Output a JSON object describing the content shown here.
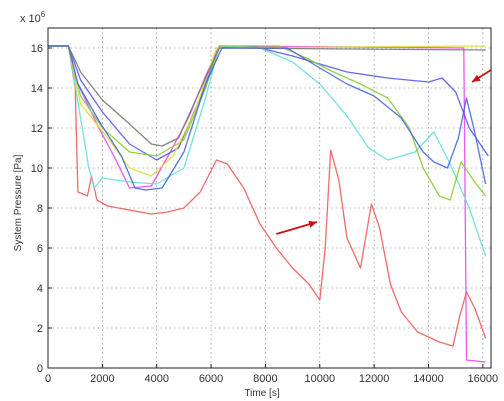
{
  "chart_data": {
    "type": "line",
    "xlabel": "Time [s]",
    "ylabel": "System Pressure [Pa]",
    "y_exponent_label": "x 10",
    "y_exponent_power": "6",
    "xlim": [
      0,
      16300
    ],
    "ylim": [
      0,
      17
    ],
    "grid": true,
    "xticks": [
      0,
      2000,
      4000,
      6000,
      8000,
      10000,
      12000,
      14000,
      16000
    ],
    "yticks": [
      0,
      2,
      4,
      6,
      8,
      10,
      12,
      14,
      16
    ],
    "series": [
      {
        "color": "#f25a5a",
        "points": [
          [
            0,
            16.1
          ],
          [
            750,
            16.1
          ],
          [
            1000,
            14
          ],
          [
            1100,
            8.8
          ],
          [
            1300,
            8.7
          ],
          [
            1450,
            8.6
          ],
          [
            1600,
            9.6
          ],
          [
            1800,
            8.4
          ],
          [
            2200,
            8.1
          ],
          [
            3000,
            7.9
          ],
          [
            3800,
            7.7
          ],
          [
            4400,
            7.8
          ],
          [
            5000,
            8.0
          ],
          [
            5600,
            8.8
          ],
          [
            6200,
            10.4
          ],
          [
            6600,
            10.2
          ],
          [
            7200,
            9.0
          ],
          [
            7800,
            7.2
          ],
          [
            8400,
            6.0
          ],
          [
            9000,
            5.0
          ],
          [
            9600,
            4.2
          ],
          [
            10000,
            3.4
          ],
          [
            10200,
            6.0
          ],
          [
            10400,
            10.9
          ],
          [
            10700,
            9.4
          ],
          [
            11000,
            6.5
          ],
          [
            11500,
            5.0
          ],
          [
            11900,
            8.2
          ],
          [
            12200,
            7.0
          ],
          [
            12600,
            4.2
          ],
          [
            13000,
            2.8
          ],
          [
            13600,
            1.8
          ],
          [
            14400,
            1.3
          ],
          [
            14900,
            1.1
          ],
          [
            15150,
            2.6
          ],
          [
            15400,
            3.8
          ],
          [
            15700,
            3.0
          ],
          [
            16100,
            1.5
          ]
        ]
      },
      {
        "color": "#ee44ee",
        "points": [
          [
            0,
            16.1
          ],
          [
            750,
            16.1
          ],
          [
            1000,
            14.5
          ],
          [
            1800,
            12.2
          ],
          [
            2500,
            10.4
          ],
          [
            3000,
            9.0
          ],
          [
            3800,
            9.1
          ],
          [
            4500,
            10.8
          ],
          [
            5200,
            12.6
          ],
          [
            5800,
            14.6
          ],
          [
            6300,
            16.1
          ],
          [
            15300,
            16.0
          ],
          [
            15400,
            0.4
          ],
          [
            16100,
            0.3
          ]
        ]
      },
      {
        "color": "#5858ee",
        "points": [
          [
            0,
            16.1
          ],
          [
            750,
            16.1
          ],
          [
            1200,
            14.4
          ],
          [
            2000,
            12.8
          ],
          [
            3000,
            11.2
          ],
          [
            4000,
            10.4
          ],
          [
            4800,
            11.0
          ],
          [
            5600,
            13.5
          ],
          [
            6300,
            16.0
          ],
          [
            7500,
            16.1
          ],
          [
            9000,
            15.6
          ],
          [
            11000,
            14.8
          ],
          [
            12500,
            14.5
          ],
          [
            14000,
            14.3
          ],
          [
            14500,
            14.5
          ],
          [
            15000,
            13.8
          ],
          [
            15500,
            12.0
          ],
          [
            16000,
            11.0
          ],
          [
            16200,
            10.6
          ]
        ]
      },
      {
        "color": "#66dddd",
        "points": [
          [
            0,
            16.1
          ],
          [
            750,
            16.1
          ],
          [
            1200,
            12.5
          ],
          [
            1500,
            10.0
          ],
          [
            1700,
            9.0
          ],
          [
            2000,
            9.5
          ],
          [
            3000,
            9.3
          ],
          [
            4000,
            9.2
          ],
          [
            5000,
            10.0
          ],
          [
            5800,
            13.5
          ],
          [
            6300,
            16.1
          ],
          [
            7800,
            16.0
          ],
          [
            9000,
            15.3
          ],
          [
            10000,
            14.2
          ],
          [
            11000,
            12.6
          ],
          [
            11800,
            11.0
          ],
          [
            12500,
            10.4
          ],
          [
            13500,
            10.8
          ],
          [
            14200,
            11.8
          ],
          [
            14800,
            10.2
          ],
          [
            15500,
            8.0
          ],
          [
            16100,
            5.6
          ]
        ]
      },
      {
        "color": "#88cc33",
        "points": [
          [
            0,
            16.1
          ],
          [
            750,
            16.1
          ],
          [
            1200,
            13.6
          ],
          [
            2000,
            12.0
          ],
          [
            3000,
            10.8
          ],
          [
            4000,
            10.6
          ],
          [
            5000,
            11.4
          ],
          [
            5800,
            14.0
          ],
          [
            6300,
            16.1
          ],
          [
            8500,
            16.1
          ],
          [
            9500,
            15.5
          ],
          [
            10500,
            14.8
          ],
          [
            11500,
            14.2
          ],
          [
            12500,
            13.5
          ],
          [
            13300,
            12.0
          ],
          [
            13800,
            10.0
          ],
          [
            14400,
            8.6
          ],
          [
            14800,
            8.4
          ],
          [
            15200,
            10.3
          ],
          [
            15700,
            9.3
          ],
          [
            16100,
            8.6
          ]
        ]
      },
      {
        "color": "#dddd33",
        "points": [
          [
            0,
            16.1
          ],
          [
            750,
            16.1
          ],
          [
            1200,
            13.2
          ],
          [
            2200,
            11.5
          ],
          [
            3000,
            10.0
          ],
          [
            3800,
            9.6
          ],
          [
            4600,
            10.6
          ],
          [
            5400,
            12.8
          ],
          [
            6200,
            16.0
          ],
          [
            16100,
            16.1
          ]
        ]
      },
      {
        "color": "#777777",
        "points": [
          [
            0,
            16.1
          ],
          [
            750,
            16.1
          ],
          [
            1200,
            14.8
          ],
          [
            2000,
            13.4
          ],
          [
            3000,
            12.2
          ],
          [
            3800,
            11.2
          ],
          [
            4200,
            11.1
          ],
          [
            4800,
            11.5
          ],
          [
            5500,
            13.6
          ],
          [
            6300,
            16.0
          ],
          [
            16100,
            15.9
          ]
        ]
      },
      {
        "color": "#4466dd",
        "points": [
          [
            0,
            16.1
          ],
          [
            750,
            16.1
          ],
          [
            1100,
            14.2
          ],
          [
            1900,
            12.3
          ],
          [
            2700,
            10.6
          ],
          [
            3200,
            9.0
          ],
          [
            3600,
            8.9
          ],
          [
            4200,
            9.0
          ],
          [
            5000,
            10.8
          ],
          [
            5800,
            14.2
          ],
          [
            6400,
            16.0
          ],
          [
            8800,
            16.0
          ],
          [
            10000,
            15.0
          ],
          [
            11000,
            14.2
          ],
          [
            12000,
            13.6
          ],
          [
            13000,
            12.5
          ],
          [
            13800,
            10.8
          ],
          [
            14200,
            10.3
          ],
          [
            14700,
            10.0
          ],
          [
            15100,
            11.5
          ],
          [
            15400,
            13.5
          ],
          [
            15700,
            11.8
          ],
          [
            16100,
            9.2
          ]
        ]
      }
    ]
  },
  "annotations": {
    "arrow_color": "#cc1111",
    "arrows": [
      {
        "from": [
          8400,
          6.7
        ],
        "to": [
          9900,
          7.3
        ]
      },
      {
        "from": [
          16300,
          14.9
        ],
        "to": [
          15600,
          14.3
        ]
      }
    ]
  }
}
